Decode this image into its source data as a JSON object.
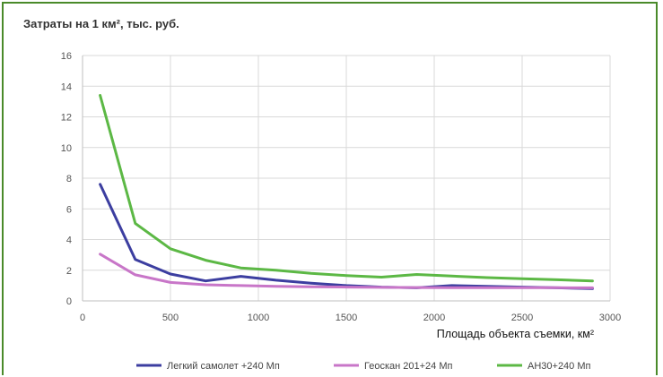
{
  "chart_data": {
    "type": "line",
    "title": "Затраты на 1 км², тыс. руб.",
    "xlabel": "Площадь объекта съемки, км²",
    "ylabel": "",
    "xlim": [
      0,
      3000
    ],
    "ylim": [
      0,
      16
    ],
    "x_ticks": [
      0,
      500,
      1000,
      1500,
      2000,
      2500,
      3000
    ],
    "y_ticks": [
      0,
      2,
      4,
      6,
      8,
      10,
      12,
      14,
      16
    ],
    "x_tick_labels": [
      "0",
      "500",
      "1000",
      "1500",
      "2000",
      "2500",
      "3000"
    ],
    "y_tick_labels": [
      "0",
      "2",
      "4",
      "6",
      "8",
      "10",
      "12",
      "14",
      "16"
    ],
    "grid": true,
    "legend_position": "bottom",
    "x": [
      100,
      300,
      500,
      700,
      900,
      1100,
      1300,
      1500,
      1700,
      1900,
      2100,
      2300,
      2500,
      2700,
      2900
    ],
    "series": [
      {
        "name": "Легкий самолет +240 Мп",
        "color": "#3c3ea0",
        "values": [
          7.6,
          2.7,
          1.75,
          1.3,
          1.6,
          1.35,
          1.15,
          1.0,
          0.9,
          0.85,
          1.0,
          0.95,
          0.9,
          0.85,
          0.8
        ]
      },
      {
        "name": "Геоскан 201+24 Мп",
        "color": "#c876c8",
        "values": [
          3.05,
          1.7,
          1.2,
          1.05,
          1.0,
          0.95,
          0.92,
          0.9,
          0.88,
          0.87,
          0.86,
          0.86,
          0.86,
          0.86,
          0.85
        ]
      },
      {
        "name": "АН30+240 Мп",
        "color": "#5cb845",
        "values": [
          13.4,
          5.05,
          3.4,
          2.65,
          2.15,
          2.0,
          1.8,
          1.65,
          1.55,
          1.72,
          1.62,
          1.52,
          1.45,
          1.38,
          1.3
        ]
      }
    ]
  }
}
